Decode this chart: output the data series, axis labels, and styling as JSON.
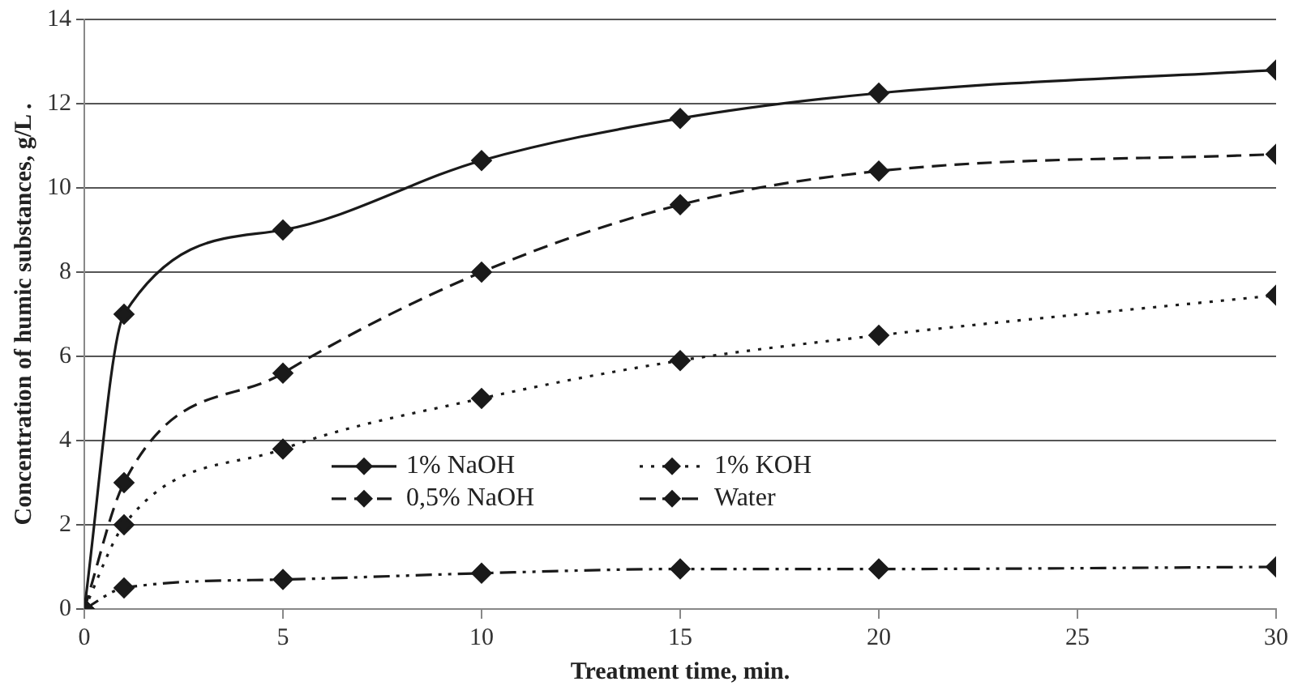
{
  "chart_data": {
    "type": "line",
    "xlabel": "Treatment time, min.",
    "ylabel": "Concentration of humic substances, g/L .",
    "x": [
      0,
      1,
      5,
      10,
      15,
      20,
      30
    ],
    "series": [
      {
        "name": "1% NaOH",
        "color": "#1a1a1a",
        "line_style": "solid",
        "values": [
          0,
          7.0,
          9.0,
          10.65,
          11.65,
          12.25,
          12.8
        ]
      },
      {
        "name": "1% KOH",
        "color": "#1a1a1a",
        "line_style": "dotted",
        "values": [
          0,
          2.0,
          3.8,
          5.0,
          5.9,
          6.5,
          7.45
        ]
      },
      {
        "name": "0,5% NaOH",
        "color": "#1a1a1a",
        "line_style": "dashed",
        "values": [
          0,
          3.0,
          5.6,
          8.0,
          9.6,
          10.4,
          10.8
        ]
      },
      {
        "name": "Water",
        "color": "#1a1a1a",
        "line_style": "dashdot",
        "values": [
          0,
          0.5,
          0.7,
          0.85,
          0.95,
          0.95,
          1.0
        ]
      }
    ],
    "xlim": [
      0,
      30
    ],
    "xticks": [
      0,
      5,
      10,
      15,
      20,
      25,
      30
    ],
    "ylim": [
      0,
      14
    ],
    "yticks": [
      0,
      2,
      4,
      6,
      8,
      10,
      12,
      14
    ],
    "grid": "y",
    "legend": "bottom",
    "marker": "diamond"
  }
}
